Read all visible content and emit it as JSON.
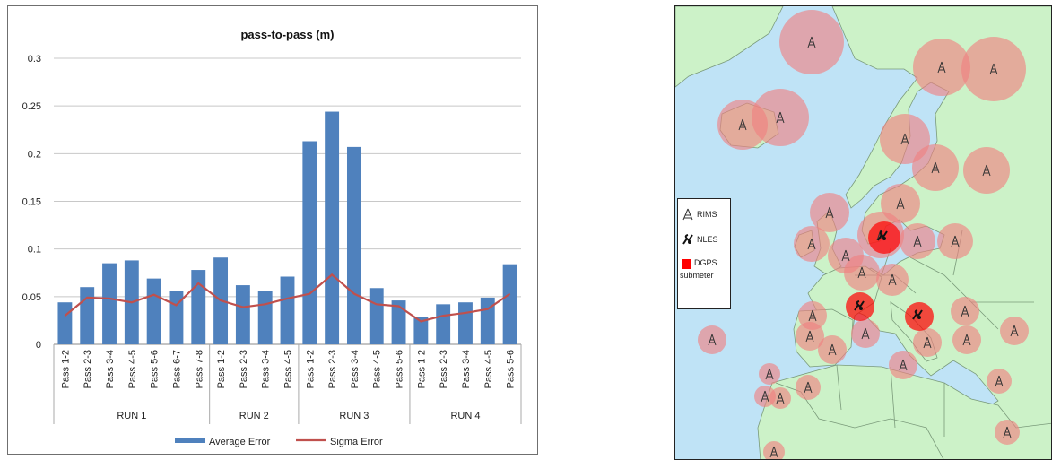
{
  "chart_data": {
    "type": "bar",
    "title": "pass-to-pass (m)",
    "categories": [
      "Pass 1-2",
      "Pass 2-3",
      "Pass 3-4",
      "Pass 4-5",
      "Pass 5-6",
      "Pass 6-7",
      "Pass 7-8",
      "Pass 1-2",
      "Pass 2-3",
      "Pass 3-4",
      "Pass 4-5",
      "Pass 1-2",
      "Pass 2-3",
      "Pass 3-4",
      "Pass 4-5",
      "Pass 5-6",
      "Pass 1-2",
      "Pass 2-3",
      "Pass 3-4",
      "Pass 4-5",
      "Pass 5-6"
    ],
    "groups": [
      {
        "name": "RUN 1",
        "count": 7
      },
      {
        "name": "RUN 2",
        "count": 4
      },
      {
        "name": "RUN 3",
        "count": 5
      },
      {
        "name": "RUN 4",
        "count": 5
      }
    ],
    "series": [
      {
        "name": "Average Error",
        "kind": "bar",
        "color": "#4f81bd",
        "values": [
          0.044,
          0.06,
          0.085,
          0.088,
          0.069,
          0.056,
          0.078,
          0.091,
          0.062,
          0.056,
          0.071,
          0.213,
          0.244,
          0.207,
          0.059,
          0.046,
          0.029,
          0.042,
          0.044,
          0.049,
          0.084
        ]
      },
      {
        "name": "Sigma Error",
        "kind": "line",
        "color": "#c0504d",
        "values": [
          0.03,
          0.049,
          0.048,
          0.044,
          0.052,
          0.041,
          0.064,
          0.046,
          0.039,
          0.042,
          0.048,
          0.053,
          0.073,
          0.053,
          0.042,
          0.04,
          0.024,
          0.03,
          0.033,
          0.037,
          0.053
        ]
      }
    ],
    "ylim": [
      0,
      0.3
    ],
    "yticks": [
      "0",
      "0.05",
      "0.1",
      "0.15",
      "0.2",
      "0.25",
      "0.3"
    ],
    "grid": true,
    "legend": "bottom"
  },
  "map": {
    "legend": {
      "rims": "RIMS",
      "nles": "NLES",
      "dgps_line1": "DGPS",
      "dgps_line2": "submeter"
    },
    "colors": {
      "sea": "#bfe3f6",
      "land": "#ccf2c8",
      "coverage": "#f08080",
      "dgps": "#ff0000"
    }
  }
}
